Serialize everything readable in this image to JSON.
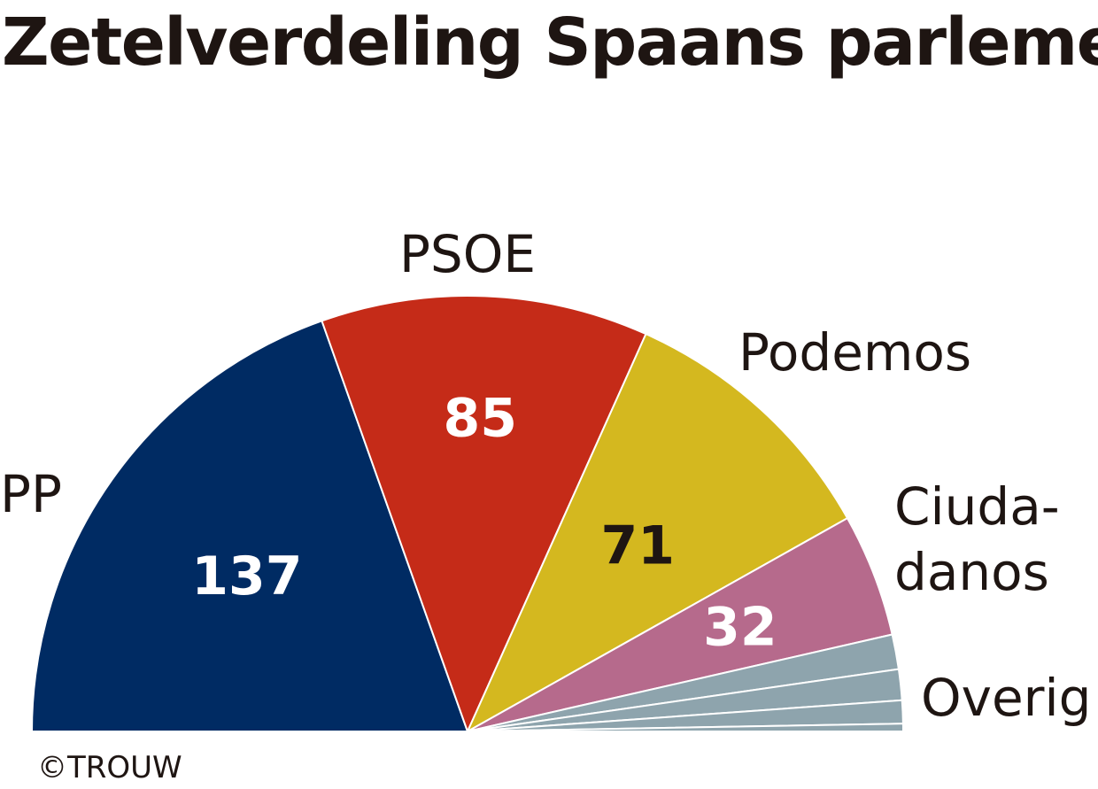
{
  "chart_data": {
    "type": "pie",
    "variant": "half-donut (parliament)",
    "title": "Zetelverdeling Spaans parlement",
    "credit": "©TROUW",
    "series": [
      {
        "name": "PP",
        "value": 137,
        "value_label": "137",
        "color": "#002b63",
        "label_color": "#ffffff",
        "party_label": "PP"
      },
      {
        "name": "PSOE",
        "value": 85,
        "value_label": "85",
        "color": "#c52b18",
        "label_color": "#ffffff",
        "party_label": "PSOE"
      },
      {
        "name": "Podemos",
        "value": 71,
        "value_label": "71",
        "color": "#d4b81f",
        "label_color": "#1e1512",
        "party_label": "Podemos"
      },
      {
        "name": "Ciudadanos",
        "value": 32,
        "value_label": "32",
        "color": "#b66a8c",
        "label_color": "#ffffff",
        "party_label_lines": [
          "Ciuda-",
          "danos"
        ]
      },
      {
        "name": "Overig",
        "value": 25,
        "color": "#8ea4ad",
        "party_label": "Overig",
        "sub_values": [
          9,
          8,
          6,
          2
        ]
      }
    ],
    "total": 350
  }
}
